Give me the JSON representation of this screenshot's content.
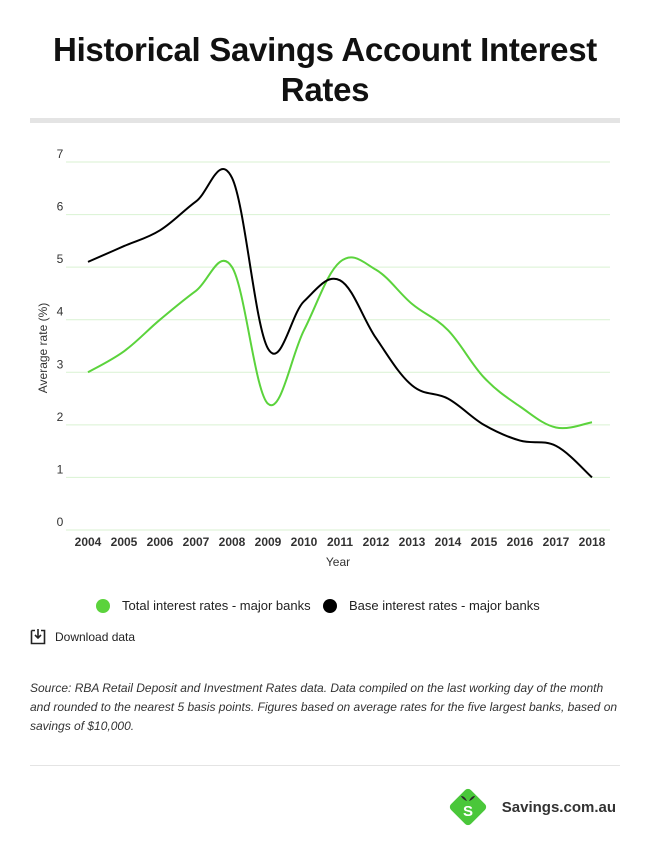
{
  "title": "Historical Savings Account Interest Rates",
  "legend": {
    "series1": "Total interest rates - major banks",
    "series2": "Base interest rates - major banks"
  },
  "download_label": "Download data",
  "source_text": "Source: RBA Retail Deposit and Investment Rates data. Data compiled on the last working day of the month and rounded to the nearest 5 basis points. Figures based on average rates for the five largest banks, based on  savings of $10,000.",
  "brand": {
    "name": "Savings.com.au",
    "logo_letter": "S"
  },
  "colors": {
    "green": "#5bd33c",
    "black": "#000000",
    "grid": "#d9f2d2"
  },
  "chart_data": {
    "type": "line",
    "title": "",
    "xlabel": "Year",
    "ylabel": "Average rate (%)",
    "ylim": [
      0,
      7
    ],
    "yticks": [
      0,
      1,
      2,
      3,
      4,
      5,
      6,
      7
    ],
    "categories": [
      "2004",
      "2005",
      "2006",
      "2007",
      "2008",
      "2009",
      "2010",
      "2011",
      "2012",
      "2013",
      "2014",
      "2015",
      "2016",
      "2017",
      "2018"
    ],
    "series": [
      {
        "name": "Total interest rates - major banks",
        "color": "#5bd33c",
        "values": [
          3.0,
          3.4,
          4.0,
          4.55,
          5.0,
          2.4,
          3.8,
          5.1,
          4.95,
          4.3,
          3.8,
          2.9,
          2.35,
          1.95,
          2.05
        ]
      },
      {
        "name": "Base interest rates - major banks",
        "color": "#000000",
        "values": [
          5.1,
          5.4,
          5.7,
          6.25,
          6.7,
          3.45,
          4.35,
          4.75,
          3.65,
          2.75,
          2.5,
          2.0,
          1.7,
          1.6,
          1.0
        ]
      }
    ]
  }
}
